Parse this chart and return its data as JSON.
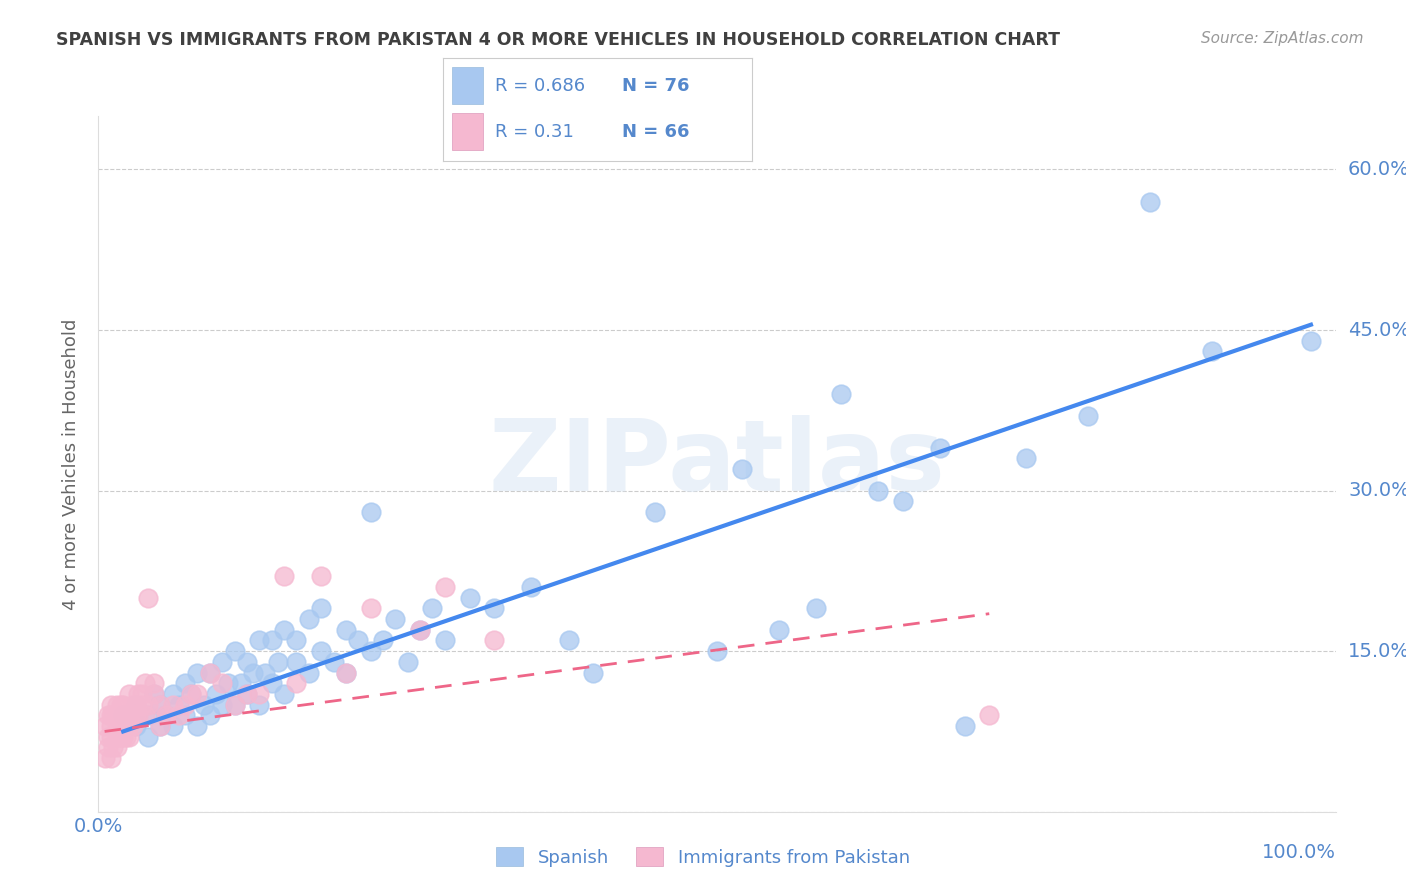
{
  "title": "SPANISH VS IMMIGRANTS FROM PAKISTAN 4 OR MORE VEHICLES IN HOUSEHOLD CORRELATION CHART",
  "source": "Source: ZipAtlas.com",
  "ylabel": "4 or more Vehicles in Household",
  "xlim": [
    0.0,
    1.0
  ],
  "ylim": [
    0.0,
    0.65
  ],
  "xticks": [
    0.0,
    0.2,
    0.4,
    0.6,
    0.8,
    1.0
  ],
  "xticklabels_left": [
    "0.0%",
    "",
    "",
    "",
    "",
    ""
  ],
  "xticklabels_right": "100.0%",
  "yticks": [
    0.0,
    0.15,
    0.3,
    0.45,
    0.6
  ],
  "yticklabels": [
    "",
    "15.0%",
    "30.0%",
    "45.0%",
    "60.0%"
  ],
  "legend1_label": "Spanish",
  "legend2_label": "Immigrants from Pakistan",
  "R1": 0.686,
  "N1": 76,
  "R2": 0.31,
  "N2": 66,
  "color1": "#a8c8f0",
  "color2": "#f5b8d0",
  "line1_color": "#4488ee",
  "line2_color": "#ee6688",
  "watermark": "ZIPatlas",
  "title_color": "#404040",
  "axis_color": "#5588cc",
  "spanish_x": [
    0.02,
    0.03,
    0.03,
    0.04,
    0.04,
    0.045,
    0.05,
    0.05,
    0.055,
    0.06,
    0.06,
    0.065,
    0.07,
    0.07,
    0.075,
    0.08,
    0.08,
    0.085,
    0.09,
    0.09,
    0.095,
    0.1,
    0.1,
    0.105,
    0.11,
    0.11,
    0.115,
    0.12,
    0.12,
    0.125,
    0.13,
    0.13,
    0.135,
    0.14,
    0.14,
    0.145,
    0.15,
    0.15,
    0.16,
    0.16,
    0.17,
    0.17,
    0.18,
    0.18,
    0.19,
    0.2,
    0.2,
    0.21,
    0.22,
    0.22,
    0.23,
    0.24,
    0.25,
    0.26,
    0.27,
    0.28,
    0.3,
    0.32,
    0.35,
    0.38,
    0.4,
    0.45,
    0.5,
    0.52,
    0.55,
    0.58,
    0.6,
    0.63,
    0.65,
    0.68,
    0.7,
    0.75,
    0.8,
    0.85,
    0.9,
    0.98
  ],
  "spanish_y": [
    0.09,
    0.08,
    0.1,
    0.07,
    0.09,
    0.11,
    0.08,
    0.1,
    0.09,
    0.08,
    0.11,
    0.1,
    0.09,
    0.12,
    0.11,
    0.08,
    0.13,
    0.1,
    0.09,
    0.13,
    0.11,
    0.1,
    0.14,
    0.12,
    0.1,
    0.15,
    0.12,
    0.11,
    0.14,
    0.13,
    0.1,
    0.16,
    0.13,
    0.12,
    0.16,
    0.14,
    0.11,
    0.17,
    0.14,
    0.16,
    0.13,
    0.18,
    0.15,
    0.19,
    0.14,
    0.13,
    0.17,
    0.16,
    0.15,
    0.28,
    0.16,
    0.18,
    0.14,
    0.17,
    0.19,
    0.16,
    0.2,
    0.19,
    0.21,
    0.16,
    0.13,
    0.28,
    0.15,
    0.32,
    0.17,
    0.19,
    0.39,
    0.3,
    0.29,
    0.34,
    0.08,
    0.33,
    0.37,
    0.57,
    0.43,
    0.44
  ],
  "pakistan_x": [
    0.005,
    0.005,
    0.008,
    0.008,
    0.008,
    0.01,
    0.01,
    0.01,
    0.01,
    0.01,
    0.012,
    0.012,
    0.015,
    0.015,
    0.015,
    0.015,
    0.015,
    0.018,
    0.018,
    0.018,
    0.02,
    0.02,
    0.02,
    0.02,
    0.022,
    0.022,
    0.025,
    0.025,
    0.025,
    0.025,
    0.028,
    0.028,
    0.03,
    0.03,
    0.032,
    0.032,
    0.035,
    0.035,
    0.038,
    0.038,
    0.04,
    0.04,
    0.045,
    0.045,
    0.05,
    0.05,
    0.055,
    0.06,
    0.065,
    0.07,
    0.075,
    0.08,
    0.09,
    0.1,
    0.11,
    0.12,
    0.13,
    0.15,
    0.16,
    0.18,
    0.2,
    0.22,
    0.26,
    0.28,
    0.32,
    0.72
  ],
  "pakistan_y": [
    0.05,
    0.08,
    0.06,
    0.09,
    0.07,
    0.05,
    0.07,
    0.08,
    0.09,
    0.1,
    0.06,
    0.09,
    0.07,
    0.08,
    0.09,
    0.1,
    0.06,
    0.07,
    0.08,
    0.1,
    0.07,
    0.08,
    0.09,
    0.1,
    0.07,
    0.09,
    0.07,
    0.08,
    0.09,
    0.11,
    0.08,
    0.1,
    0.09,
    0.1,
    0.09,
    0.11,
    0.1,
    0.11,
    0.09,
    0.12,
    0.1,
    0.2,
    0.11,
    0.12,
    0.1,
    0.08,
    0.09,
    0.1,
    0.09,
    0.1,
    0.11,
    0.11,
    0.13,
    0.12,
    0.1,
    0.11,
    0.11,
    0.22,
    0.12,
    0.22,
    0.13,
    0.19,
    0.17,
    0.21,
    0.16,
    0.09
  ],
  "line1_x_start": 0.02,
  "line1_x_end": 0.98,
  "line1_y_start": 0.075,
  "line1_y_end": 0.455,
  "line2_x_start": 0.005,
  "line2_x_end": 0.72,
  "line2_y_start": 0.075,
  "line2_y_end": 0.185
}
